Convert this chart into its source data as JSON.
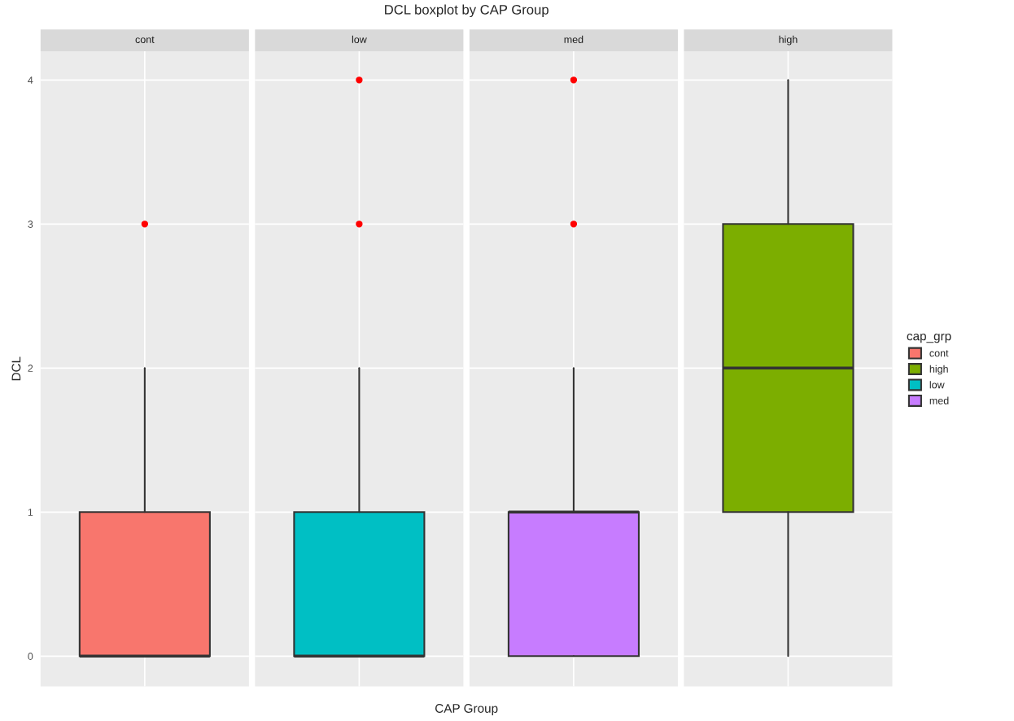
{
  "chart_data": {
    "type": "box",
    "title": "DCL boxplot by CAP Group",
    "xlabel": "CAP Group",
    "ylabel": "DCL",
    "legend_title": "cap_grp",
    "categories": [
      "cont",
      "low",
      "med",
      "high"
    ],
    "series": [
      {
        "name": "cont",
        "color": "#f8766d",
        "boxes": [
          {
            "low": 0,
            "q1": 0,
            "median": 0,
            "q3": 1,
            "high": 2,
            "outliers": [
              3
            ]
          },
          null,
          null,
          null
        ]
      },
      {
        "name": "high",
        "color": "#7cae00",
        "boxes": [
          null,
          null,
          null,
          {
            "low": 0,
            "q1": 1,
            "median": 2,
            "q3": 3,
            "high": 4
          }
        ]
      },
      {
        "name": "low",
        "color": "#00bfc4",
        "boxes": [
          null,
          {
            "low": 0,
            "q1": 0,
            "median": 0,
            "q3": 1,
            "high": 2,
            "outliers": [
              3,
              4
            ]
          },
          null,
          null
        ]
      },
      {
        "name": "med",
        "color": "#c77cff",
        "boxes": [
          null,
          null,
          {
            "low": 0,
            "q1": 0,
            "median": 1,
            "q3": 1,
            "high": 2,
            "outliers": [
              3,
              4
            ]
          },
          null
        ]
      }
    ],
    "ylim": [
      -0.21,
      4.2
    ],
    "yticks": [
      0,
      1,
      2,
      3,
      4
    ],
    "grid": true,
    "legend": "right",
    "tick_labels": "y"
  }
}
